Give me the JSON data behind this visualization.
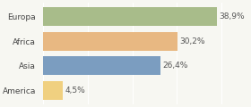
{
  "categories": [
    "Europa",
    "Africa",
    "Asia",
    "America"
  ],
  "values": [
    38.9,
    30.2,
    26.4,
    4.5
  ],
  "labels": [
    "38,9%",
    "30,2%",
    "26,4%",
    "4,5%"
  ],
  "bar_colors": [
    "#a8bc8a",
    "#e8b882",
    "#7b9dc0",
    "#f0d080"
  ],
  "background_color": "#f7f7f2",
  "xlim": [
    0,
    46
  ],
  "label_fontsize": 6.5,
  "category_fontsize": 6.5,
  "bar_height": 0.75,
  "figsize": [
    2.8,
    1.2
  ],
  "dpi": 100
}
